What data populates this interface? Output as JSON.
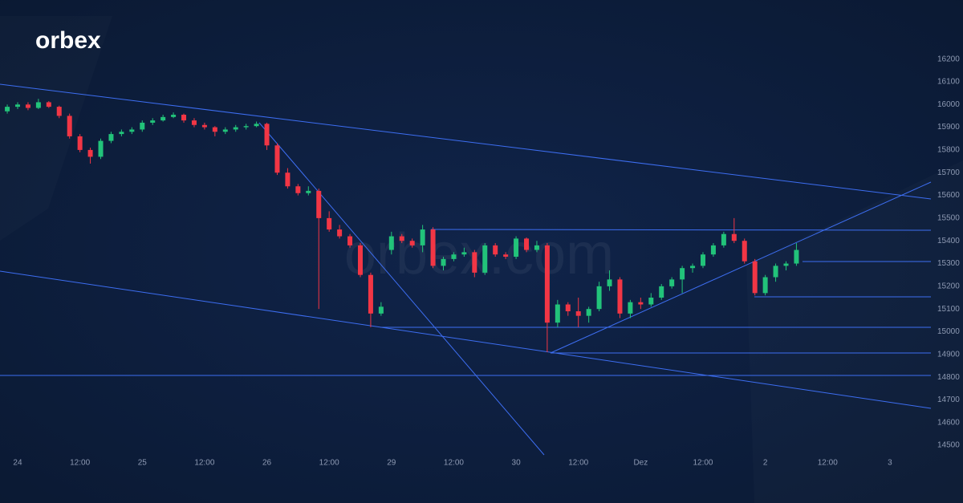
{
  "logo": "orbex",
  "watermark": "orbex.com",
  "chart_data": {
    "type": "candlestick",
    "up_color": "#22c37a",
    "down_color": "#f23645",
    "x": [
      -2,
      0,
      2,
      4,
      6,
      8,
      10,
      12,
      14,
      16,
      18,
      20,
      22,
      24,
      26,
      28,
      30,
      32,
      34,
      36,
      38,
      40,
      42,
      44,
      46,
      48,
      50,
      52,
      54,
      56,
      58,
      60,
      62,
      64,
      66,
      68,
      70,
      72,
      74,
      76,
      78,
      80,
      82,
      84,
      86,
      88,
      90,
      92,
      94,
      96,
      98,
      100,
      102,
      104,
      106,
      108,
      110,
      112,
      114,
      116,
      118,
      120,
      122,
      124,
      126,
      128,
      130,
      132,
      134,
      136,
      138,
      140,
      142,
      144,
      146,
      148,
      150
    ],
    "open": [
      15970,
      15990,
      16000,
      15985,
      16010,
      15990,
      15950,
      15860,
      15800,
      15770,
      15840,
      15870,
      15880,
      15890,
      15920,
      15930,
      15945,
      15955,
      15930,
      15910,
      15900,
      15880,
      15890,
      15900,
      15905,
      15915,
      15820,
      15700,
      15640,
      15610,
      15620,
      15500,
      15450,
      15420,
      15380,
      15250,
      15080,
      15360,
      15420,
      15400,
      15380,
      15450,
      15290,
      15320,
      15340,
      15350,
      15260,
      15380,
      15340,
      15330,
      15410,
      15360,
      15380,
      15040,
      15120,
      15090,
      15070,
      15100,
      15200,
      15230,
      15080,
      15130,
      15120,
      15150,
      15200,
      15230,
      15280,
      15290,
      15340,
      15380,
      15430,
      15400,
      15310,
      15170,
      15240,
      15290,
      15300
    ],
    "high": [
      16000,
      16010,
      16010,
      16025,
      16015,
      15995,
      15960,
      15870,
      15810,
      15850,
      15880,
      15890,
      15900,
      15930,
      15940,
      15955,
      15965,
      15960,
      15940,
      15920,
      15905,
      15900,
      15910,
      15915,
      15925,
      15920,
      15830,
      15720,
      15650,
      15640,
      15630,
      15530,
      15470,
      15430,
      15390,
      15260,
      15130,
      15440,
      15430,
      15410,
      15470,
      15460,
      15330,
      15350,
      15370,
      15360,
      15390,
      15390,
      15350,
      15420,
      15415,
      15400,
      15390,
      15140,
      15130,
      15150,
      15110,
      15220,
      15270,
      15240,
      15140,
      15150,
      15170,
      15210,
      15240,
      15290,
      15300,
      15350,
      15390,
      15440,
      15500,
      15410,
      15320,
      15250,
      15300,
      15310,
      15390
    ],
    "low": [
      15960,
      15980,
      15975,
      15980,
      15985,
      15940,
      15850,
      15790,
      15740,
      15760,
      15830,
      15860,
      15870,
      15880,
      15910,
      15925,
      15940,
      15920,
      15900,
      15890,
      15860,
      15870,
      15880,
      15890,
      15900,
      15800,
      15690,
      15630,
      15600,
      15600,
      15100,
      15440,
      15410,
      15370,
      15240,
      15020,
      15070,
      15340,
      15390,
      15370,
      15350,
      15280,
      15270,
      15310,
      15330,
      15240,
      15250,
      15330,
      15320,
      15320,
      15350,
      15350,
      14910,
      15020,
      15070,
      15020,
      15040,
      15090,
      15180,
      15060,
      15060,
      15100,
      15110,
      15140,
      15190,
      15170,
      15260,
      15280,
      15330,
      15370,
      15390,
      15300,
      15160,
      15160,
      15220,
      15270,
      15290
    ],
    "close": [
      15990,
      16000,
      15985,
      16010,
      15990,
      15950,
      15860,
      15800,
      15770,
      15840,
      15870,
      15880,
      15890,
      15920,
      15930,
      15945,
      15955,
      15930,
      15910,
      15900,
      15880,
      15890,
      15900,
      15905,
      15915,
      15820,
      15700,
      15640,
      15610,
      15620,
      15500,
      15450,
      15420,
      15380,
      15250,
      15080,
      15110,
      15420,
      15400,
      15380,
      15450,
      15290,
      15320,
      15340,
      15350,
      15260,
      15380,
      15340,
      15330,
      15410,
      15360,
      15380,
      15040,
      15120,
      15090,
      15070,
      15100,
      15200,
      15230,
      15080,
      15130,
      15120,
      15150,
      15200,
      15230,
      15280,
      15290,
      15340,
      15380,
      15430,
      15400,
      15310,
      15170,
      15240,
      15290,
      15300,
      15360
    ],
    "xlim": [
      -3.4,
      175.9
    ],
    "ylim": [
      14458,
      16460
    ],
    "xticks": [
      {
        "value": 0,
        "label": "24"
      },
      {
        "value": 12,
        "label": "12:00"
      },
      {
        "value": 24,
        "label": "25"
      },
      {
        "value": 36,
        "label": "12:00"
      },
      {
        "value": 48,
        "label": "26"
      },
      {
        "value": 60,
        "label": "12:00"
      },
      {
        "value": 72,
        "label": "29"
      },
      {
        "value": 84,
        "label": "12:00"
      },
      {
        "value": 96,
        "label": "30"
      },
      {
        "value": 108,
        "label": "12:00"
      },
      {
        "value": 120,
        "label": "Dez"
      },
      {
        "value": 132,
        "label": "12:00"
      },
      {
        "value": 144,
        "label": "2"
      },
      {
        "value": 156,
        "label": "12:00"
      },
      {
        "value": 168,
        "label": "3"
      }
    ],
    "yticks": [
      14500,
      14600,
      14700,
      14800,
      14900,
      15000,
      15100,
      15200,
      15300,
      15400,
      15500,
      15600,
      15700,
      15800,
      15900,
      16000,
      16100,
      16200
    ]
  }
}
